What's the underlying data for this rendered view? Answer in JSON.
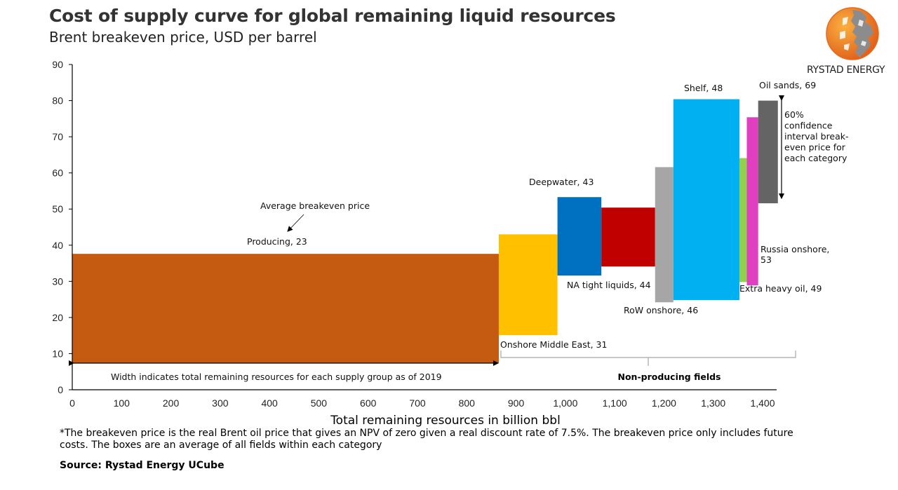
{
  "header": {
    "title": "Cost of supply curve for global remaining liquid resources",
    "subtitle": "Brent breakeven price, USD per barrel"
  },
  "logo": {
    "icon": "globe-logo-icon",
    "text": "RYSTAD ENERGY",
    "colors": {
      "orange": "#F07F24",
      "gray": "#8C8C8C"
    }
  },
  "chart_data": {
    "type": "bar",
    "subtype": "variable-width floating bars (cost of supply curve)",
    "title": "Cost of supply curve for global remaining liquid resources",
    "subtitle": "Brent breakeven price, USD per barrel",
    "xlabel": "Total remaining resources in billion bbl",
    "ylabel": "",
    "xlim": [
      0,
      1400
    ],
    "ylim": [
      0,
      90
    ],
    "xticks": [
      "0",
      "100",
      "200",
      "300",
      "400",
      "500",
      "600",
      "700",
      "800",
      "900",
      "1,000",
      "1,100",
      "1,200",
      "1,300",
      "1,400"
    ],
    "xtick_values": [
      0,
      100,
      200,
      300,
      400,
      500,
      600,
      700,
      800,
      900,
      1000,
      1100,
      1200,
      1300,
      1400
    ],
    "yticks": [
      "0",
      "10",
      "20",
      "30",
      "40",
      "50",
      "60",
      "70",
      "80",
      "90"
    ],
    "ytick_values": [
      0,
      10,
      20,
      30,
      40,
      50,
      60,
      70,
      80,
      90
    ],
    "grid": false,
    "series": [
      {
        "name": "Producing",
        "label": "Producing, 23",
        "avg_breakeven": 23,
        "x_start": 0,
        "x_end": 865,
        "low": 7.4,
        "high": 37.6,
        "color": "#C55A11"
      },
      {
        "name": "Onshore Middle East",
        "label": "Onshore Middle East, 31",
        "avg_breakeven": 31,
        "x_start": 865,
        "x_end": 984,
        "low": 15.1,
        "high": 43.0,
        "color": "#FFC000"
      },
      {
        "name": "Deepwater",
        "label": "Deepwater, 43",
        "avg_breakeven": 43,
        "x_start": 984,
        "x_end": 1073,
        "low": 31.6,
        "high": 53.3,
        "color": "#0070C0"
      },
      {
        "name": "NA tight liquids",
        "label": "NA tight liquids, 44",
        "avg_breakeven": 44,
        "x_start": 1073,
        "x_end": 1182,
        "low": 34.1,
        "high": 50.4,
        "color": "#C00000"
      },
      {
        "name": "RoW onshore",
        "label": "RoW onshore, 46",
        "avg_breakeven": 46,
        "x_start": 1182,
        "x_end": 1219,
        "low": 24.2,
        "high": 61.6,
        "color": "#A6A6A6"
      },
      {
        "name": "Shelf",
        "label": "Shelf, 48",
        "avg_breakeven": 48,
        "x_start": 1219,
        "x_end": 1353,
        "low": 24.8,
        "high": 80.4,
        "color": "#00B0F0"
      },
      {
        "name": "Extra heavy oil",
        "label": "Extra heavy oil, 49",
        "avg_breakeven": 49,
        "x_start": 1353,
        "x_end": 1368,
        "low": 29.8,
        "high": 64.1,
        "color": "#92D050"
      },
      {
        "name": "Russia onshore",
        "label_lines": [
          "Russia onshore,",
          "53"
        ],
        "avg_breakeven": 53,
        "x_start": 1368,
        "x_end": 1391,
        "low": 28.9,
        "high": 75.4,
        "color": "#E040C0"
      },
      {
        "name": "Oil sands",
        "label": "Oil sands, 69",
        "avg_breakeven": 69,
        "x_start": 1391,
        "x_end": 1431,
        "low": 51.6,
        "high": 80.0,
        "color": "#646464"
      }
    ],
    "annotations": {
      "average_breakeven": "Average breakeven price",
      "width_note": "Width indicates total remaining resources for each supply group as of 2019",
      "non_producing": "Non-producing fields",
      "confidence_lines": [
        "60%",
        "confidence",
        "interval break-",
        "even price for",
        "each category"
      ]
    }
  },
  "footnote": "*The breakeven price is the real Brent oil price that gives an NPV of zero given a real discount rate of 7.5%. The breakeven price only includes future costs. The boxes are an average of all fields within each category",
  "source": "Source: Rystad Energy UCube"
}
